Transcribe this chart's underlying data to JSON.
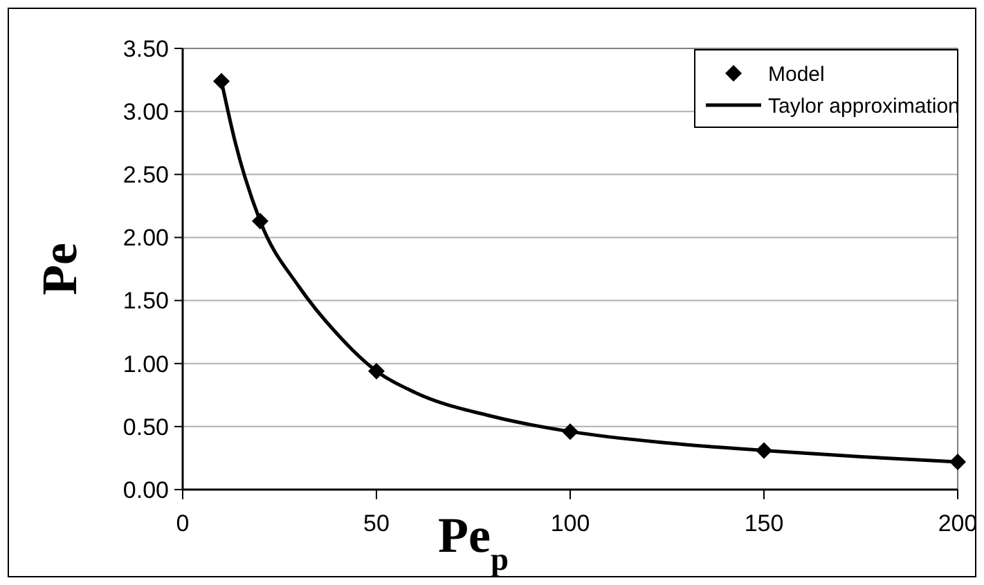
{
  "chart_data": {
    "type": "scatter",
    "xlabel": "Pe$_{p}$",
    "ylabel": "Pe",
    "xlim": [
      0,
      200
    ],
    "xticks": [
      0,
      50,
      100,
      150,
      200
    ],
    "ylim": [
      0,
      3.5
    ],
    "yticks": [
      {
        "value": 0,
        "label": "0.00"
      },
      {
        "value": 0.5,
        "label": "0.50"
      },
      {
        "value": 1,
        "label": "1.00"
      },
      {
        "value": 1.5,
        "label": "1.50"
      },
      {
        "value": 2,
        "label": "2.00"
      },
      {
        "value": 2.5,
        "label": "2.50"
      },
      {
        "value": 3,
        "label": "3.00"
      },
      {
        "value": 3.5,
        "label": "3.50"
      }
    ],
    "grid": "y",
    "legend": "top right",
    "series": [
      {
        "name": "Model",
        "marker": "diamond",
        "color": "#000000",
        "x": [
          10,
          20,
          50,
          100,
          150,
          200
        ],
        "values": [
          3.24,
          2.13,
          0.94,
          0.46,
          0.31,
          0.22
        ]
      },
      {
        "name": "Taylor approximation",
        "type": "line",
        "marker": "none",
        "line_style": "solid",
        "color": "#000000",
        "x": [
          10,
          13.6,
          20,
          30,
          40,
          50,
          60,
          80,
          100,
          125,
          150,
          175,
          200
        ],
        "values": [
          3.24,
          2.75,
          2.13,
          1.61,
          1.23,
          0.94,
          0.77,
          0.58,
          0.46,
          0.37,
          0.31,
          0.26,
          0.22
        ]
      }
    ]
  }
}
